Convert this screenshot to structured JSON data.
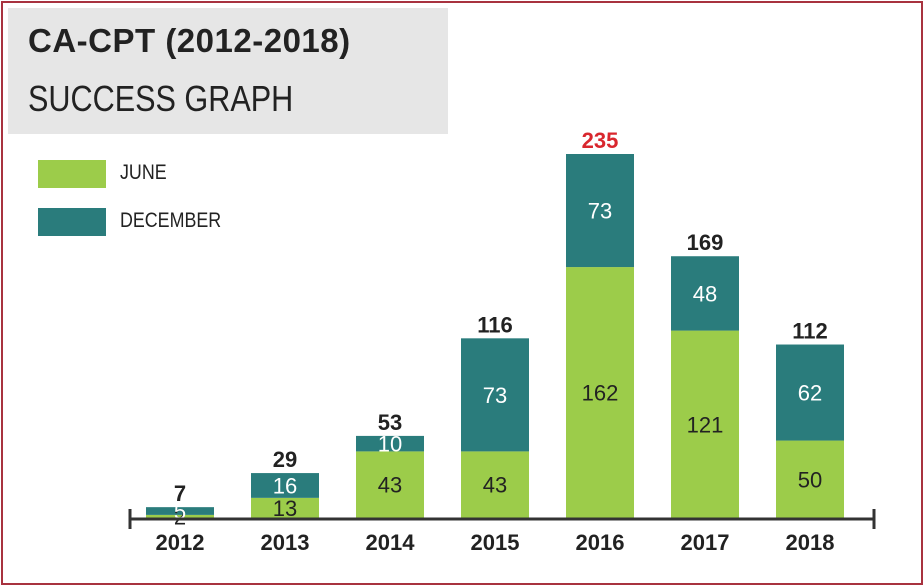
{
  "title": "CA-CPT (2012-2018)",
  "subtitle": "SUCCESS GRAPH",
  "colors": {
    "june": "#9ccc4a",
    "december": "#2a7c7c",
    "total_default": "#222222",
    "total_highlight": "#d9272e",
    "border": "#a8323f",
    "title_bg": "#e6e6e6"
  },
  "legend": [
    {
      "label": "JUNE",
      "color": "#9ccc4a"
    },
    {
      "label": "DECEMBER",
      "color": "#2a7c7c"
    }
  ],
  "chart_data": {
    "type": "bar",
    "stacked": true,
    "title": "CA-CPT (2012-2018)",
    "subtitle": "SUCCESS GRAPH",
    "categories": [
      "2012",
      "2013",
      "2014",
      "2015",
      "2016",
      "2017",
      "2018"
    ],
    "series": [
      {
        "name": "JUNE",
        "values": [
          2,
          13,
          43,
          43,
          162,
          121,
          50
        ]
      },
      {
        "name": "DECEMBER",
        "values": [
          5,
          16,
          10,
          73,
          73,
          48,
          62
        ]
      }
    ],
    "totals": [
      7,
      29,
      53,
      116,
      235,
      169,
      112
    ],
    "highlight_total": "2016",
    "legend_position": "top-left",
    "grid": false
  }
}
